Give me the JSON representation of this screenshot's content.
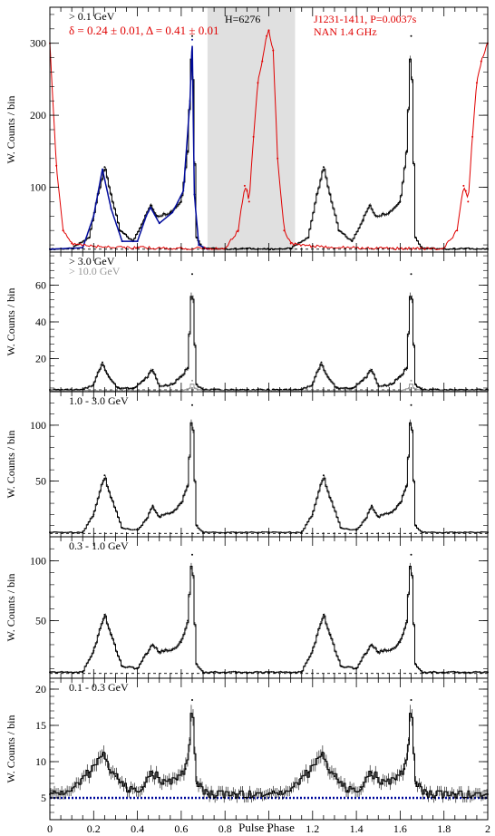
{
  "figure": {
    "xlabel": "Pulse Phase",
    "ylabel": "W. Counts / bin",
    "xticks": [
      "0",
      "0.2",
      "0.4",
      "0.6",
      "0.8",
      "1",
      "1.2",
      "1.4",
      "1.6",
      "1.8",
      "2"
    ]
  },
  "colors": {
    "black": "#000000",
    "red": "#e00000",
    "blue": "#000a9c",
    "gray": "#999999",
    "shade": "#e0e0e0"
  },
  "chart_data": [
    {
      "type": "line",
      "panel": "top",
      "labels": {
        "energy": "> 0.1 GeV",
        "fit": "δ = 0.24 ± 0.01, Δ = 0.41 ± 0.01",
        "htest": "H=6276",
        "pulsar": "J1231-1411, P=0.0037s",
        "radio": "NAN 1.4 GHz"
      },
      "xlim": [
        0,
        2
      ],
      "ylim": [
        10,
        350
      ],
      "yticks": [
        100,
        200,
        300
      ],
      "shaded_region": [
        0.72,
        1.12
      ],
      "background_level": 14,
      "series": [
        {
          "color": "black",
          "x": [
            0.0,
            0.1,
            0.18,
            0.22,
            0.25,
            0.28,
            0.32,
            0.38,
            0.43,
            0.46,
            0.49,
            0.55,
            0.6,
            0.63,
            0.65,
            0.67,
            0.7,
            0.8,
            0.9,
            1.0,
            1.1,
            1.18,
            1.22,
            1.25,
            1.28,
            1.32,
            1.38,
            1.43,
            1.46,
            1.49,
            1.55,
            1.6,
            1.63,
            1.65,
            1.67,
            1.7,
            1.8,
            1.9,
            2.0
          ],
          "y": [
            14,
            15,
            30,
            90,
            128,
            90,
            40,
            25,
            55,
            75,
            60,
            65,
            80,
            150,
            310,
            30,
            16,
            14,
            15,
            14,
            15,
            30,
            90,
            128,
            90,
            40,
            25,
            55,
            75,
            60,
            65,
            80,
            150,
            310,
            30,
            16,
            14,
            15,
            14
          ]
        },
        {
          "color": "blue",
          "x": [
            0.0,
            0.15,
            0.2,
            0.24,
            0.28,
            0.33,
            0.4,
            0.44,
            0.46,
            0.5,
            0.56,
            0.61,
            0.64,
            0.65,
            0.66,
            0.68,
            0.72
          ],
          "y": [
            14,
            16,
            60,
            125,
            70,
            25,
            25,
            60,
            72,
            50,
            65,
            95,
            220,
            305,
            90,
            20,
            14
          ]
        },
        {
          "color": "red",
          "x": [
            0.0,
            0.03,
            0.06,
            0.1,
            0.2,
            0.4,
            0.6,
            0.8,
            0.86,
            0.89,
            0.9,
            0.91,
            0.93,
            0.95,
            0.97,
            0.99,
            1.0,
            1.02,
            1.04,
            1.07,
            1.1,
            1.2,
            1.4,
            1.6,
            1.8,
            1.86,
            1.89,
            1.9,
            1.91,
            1.93,
            1.95,
            1.97,
            2.0
          ],
          "y": [
            300,
            130,
            40,
            22,
            18,
            16,
            15,
            15,
            40,
            102,
            95,
            80,
            170,
            245,
            275,
            310,
            318,
            290,
            140,
            40,
            22,
            18,
            16,
            15,
            15,
            40,
            102,
            95,
            80,
            170,
            245,
            275,
            300
          ]
        }
      ]
    },
    {
      "type": "line",
      "panel": "2",
      "labels": {
        "energy": "> 3.0 GeV",
        "energy2": "> 10.0 GeV"
      },
      "xlim": [
        0,
        2
      ],
      "ylim": [
        2,
        78
      ],
      "yticks": [
        20,
        40,
        60
      ],
      "background_level": 3,
      "series": [
        {
          "color": "black",
          "x": [
            0.0,
            0.15,
            0.2,
            0.24,
            0.27,
            0.31,
            0.38,
            0.43,
            0.47,
            0.5,
            0.56,
            0.6,
            0.63,
            0.65,
            0.67,
            0.7,
            0.85,
            1.0,
            1.15,
            1.2,
            1.24,
            1.27,
            1.31,
            1.38,
            1.43,
            1.47,
            1.5,
            1.56,
            1.6,
            1.63,
            1.65,
            1.67,
            1.7,
            1.85,
            2.0
          ],
          "y": [
            3,
            3,
            6,
            18,
            10,
            4,
            4,
            8,
            14,
            5,
            6,
            10,
            15,
            66,
            6,
            3,
            3,
            3,
            3,
            6,
            18,
            10,
            4,
            4,
            8,
            14,
            5,
            6,
            10,
            15,
            66,
            6,
            3,
            3,
            3
          ]
        },
        {
          "color": "gray",
          "x": [
            0.0,
            0.6,
            0.64,
            0.65,
            0.66,
            0.7,
            1.6,
            1.64,
            1.65,
            1.66,
            1.7,
            2.0
          ],
          "y": [
            2.5,
            2.5,
            4,
            8,
            4,
            2.5,
            2.5,
            4,
            8,
            4,
            2.5,
            2.5
          ]
        }
      ]
    },
    {
      "type": "line",
      "panel": "3",
      "labels": {
        "energy": "1.0 - 3.0 GeV"
      },
      "xlim": [
        0,
        2
      ],
      "ylim": [
        0,
        130
      ],
      "yticks": [
        50,
        100
      ],
      "background_level": 3,
      "series": [
        {
          "color": "black",
          "x": [
            0.0,
            0.15,
            0.2,
            0.25,
            0.28,
            0.33,
            0.4,
            0.44,
            0.47,
            0.5,
            0.56,
            0.6,
            0.63,
            0.65,
            0.67,
            0.7,
            0.85,
            1.0,
            1.15,
            1.2,
            1.25,
            1.28,
            1.33,
            1.4,
            1.44,
            1.47,
            1.5,
            1.56,
            1.6,
            1.63,
            1.65,
            1.67,
            1.7,
            1.85,
            2.0
          ],
          "y": [
            4,
            4,
            20,
            55,
            35,
            8,
            6,
            15,
            28,
            18,
            22,
            30,
            45,
            118,
            10,
            4,
            4,
            4,
            4,
            20,
            55,
            35,
            8,
            6,
            15,
            28,
            18,
            22,
            30,
            45,
            118,
            10,
            4,
            4,
            4
          ]
        }
      ]
    },
    {
      "type": "line",
      "panel": "4",
      "labels": {
        "energy": "0.3 - 1.0 GeV"
      },
      "xlim": [
        0,
        2
      ],
      "ylim": [
        2,
        120
      ],
      "yticks": [
        50,
        100
      ],
      "background_level": 6,
      "series": [
        {
          "color": "black",
          "x": [
            0.0,
            0.15,
            0.2,
            0.25,
            0.28,
            0.33,
            0.4,
            0.44,
            0.47,
            0.5,
            0.56,
            0.6,
            0.63,
            0.65,
            0.67,
            0.7,
            0.85,
            1.0,
            1.15,
            1.2,
            1.25,
            1.28,
            1.33,
            1.4,
            1.44,
            1.47,
            1.5,
            1.56,
            1.6,
            1.63,
            1.65,
            1.67,
            1.7,
            1.85,
            2.0
          ],
          "y": [
            7,
            7,
            25,
            55,
            38,
            12,
            10,
            22,
            30,
            24,
            26,
            32,
            50,
            105,
            14,
            7,
            7,
            7,
            7,
            25,
            55,
            38,
            12,
            10,
            22,
            30,
            24,
            26,
            32,
            50,
            105,
            14,
            7,
            7,
            7
          ]
        }
      ]
    },
    {
      "type": "line",
      "panel": "5",
      "labels": {
        "energy": "0.1 - 0.3 GeV"
      },
      "xlim": [
        0,
        2
      ],
      "ylim": [
        2,
        21.5
      ],
      "yticks": [
        5,
        10,
        15,
        20
      ],
      "background_level": 5,
      "series": [
        {
          "color": "black",
          "x": [
            0.0,
            0.1,
            0.18,
            0.24,
            0.3,
            0.36,
            0.42,
            0.47,
            0.52,
            0.58,
            0.62,
            0.64,
            0.65,
            0.67,
            0.72,
            0.85,
            1.0,
            1.1,
            1.18,
            1.24,
            1.3,
            1.36,
            1.42,
            1.47,
            1.52,
            1.58,
            1.62,
            1.64,
            1.65,
            1.67,
            1.72,
            1.85,
            2.0
          ],
          "y": [
            5.5,
            6,
            8.5,
            11,
            8,
            6,
            6.5,
            8.5,
            7,
            7.5,
            9,
            13,
            18.5,
            7,
            5.5,
            5.5,
            5.5,
            6,
            8.5,
            11,
            8,
            6,
            6.5,
            8.5,
            7,
            7.5,
            9,
            13,
            18.5,
            7,
            5.5,
            5.5,
            5.5
          ]
        }
      ]
    }
  ]
}
